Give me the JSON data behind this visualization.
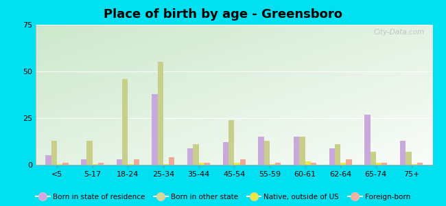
{
  "title": "Place of birth by age - Greensboro",
  "categories": [
    "<5",
    "5-17",
    "18-24",
    "25-34",
    "35-44",
    "45-54",
    "55-59",
    "60-61",
    "62-64",
    "65-74",
    "75+"
  ],
  "series": {
    "Born in state of residence": [
      5,
      3,
      3,
      38,
      9,
      12,
      15,
      15,
      9,
      27,
      13
    ],
    "Born in other state": [
      13,
      13,
      46,
      55,
      11,
      24,
      13,
      15,
      11,
      7,
      7
    ],
    "Native, outside of US": [
      0.5,
      0.5,
      0.5,
      0.5,
      1,
      1,
      0.5,
      2,
      1,
      1,
      0.5
    ],
    "Foreign-born": [
      1,
      1,
      3,
      4,
      1,
      3,
      1,
      1,
      3,
      1,
      1
    ]
  },
  "colors": {
    "Born in state of residence": "#c9a8dc",
    "Born in other state": "#c8cf8a",
    "Native, outside of US": "#ede84a",
    "Foreign-born": "#f0a898"
  },
  "legend_colors": {
    "Born in state of residence": "#d4a8e0",
    "Born in other state": "#d4d898",
    "Native, outside of US": "#f0e840",
    "Foreign-born": "#f4b0a0"
  },
  "ylim": [
    0,
    75
  ],
  "yticks": [
    0,
    25,
    50,
    75
  ],
  "outer_background": "#00e0f0",
  "watermark": "City-Data.com",
  "bar_width": 0.16,
  "title_fontsize": 13
}
